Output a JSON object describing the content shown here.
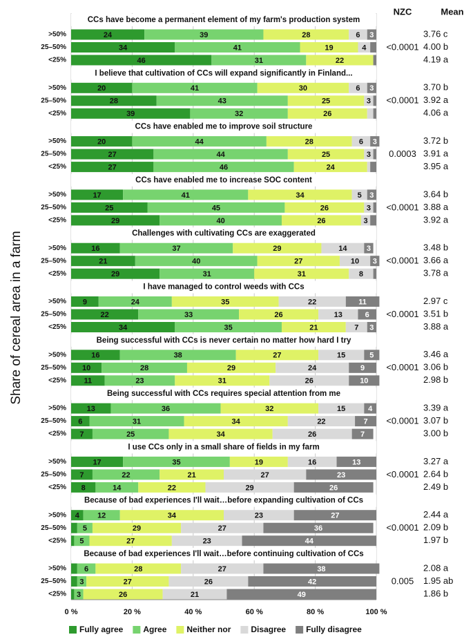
{
  "chart_data": {
    "type": "stacked-barh-panels",
    "ylabel": "Share of cereal area in a farm",
    "nzc_header": "NZC",
    "mean_header": "Mean",
    "categories": [
      ">50%",
      "25–50%",
      "<25%"
    ],
    "series": [
      {
        "name": "Fully agree",
        "color": "#2e9a2e"
      },
      {
        "name": "Agree",
        "color": "#77d36f"
      },
      {
        "name": "Neither nor",
        "color": "#dff266"
      },
      {
        "name": "Disagree",
        "color": "#d9d9d9"
      },
      {
        "name": "Fully disagree",
        "color": "#7f7f7f"
      }
    ],
    "xlim": [
      0,
      100
    ],
    "xticks": [
      {
        "value": 0,
        "label": "0 %"
      },
      {
        "value": 20,
        "label": "20 %"
      },
      {
        "value": 40,
        "label": "40 %"
      },
      {
        "value": 60,
        "label": "60 %"
      },
      {
        "value": 80,
        "label": "80 %"
      },
      {
        "value": 100,
        "label": "100 %"
      }
    ],
    "grid": true,
    "panels": [
      {
        "title": "CCs have become a permanent element of my farm's production system",
        "nzc": "<0.0001",
        "means": [
          "3.76 c",
          "4.00 b",
          "4.19 a"
        ],
        "values": [
          [
            24,
            39,
            28,
            6,
            3
          ],
          [
            34,
            41,
            19,
            4,
            2
          ],
          [
            46,
            31,
            22,
            0,
            1
          ]
        ]
      },
      {
        "title": "I believe that cultivation of CCs will expand significantly in Finland...",
        "nzc": "<0.0001",
        "means": [
          "3.70 b",
          "3.92 a",
          "4.06 a"
        ],
        "values": [
          [
            20,
            41,
            30,
            6,
            3
          ],
          [
            28,
            43,
            25,
            3,
            1
          ],
          [
            39,
            32,
            26,
            2,
            1
          ]
        ]
      },
      {
        "title": "CCs have enabled me to improve soil structure",
        "nzc": "0.0003",
        "means": [
          "3.72 b",
          "3.91 a",
          "3.95 a"
        ],
        "values": [
          [
            20,
            44,
            28,
            6,
            3
          ],
          [
            27,
            44,
            25,
            3,
            1
          ],
          [
            27,
            46,
            24,
            1,
            2
          ]
        ]
      },
      {
        "title": "CCs have enabled me to increase SOC content",
        "nzc": "<0.0001",
        "means": [
          "3.64 b",
          "3.88 a",
          "3.92 a"
        ],
        "values": [
          [
            17,
            41,
            34,
            5,
            3
          ],
          [
            25,
            45,
            26,
            3,
            1
          ],
          [
            29,
            40,
            26,
            3,
            2
          ]
        ]
      },
      {
        "title": "Challenges with cultivating CCs are exaggerated",
        "nzc": "<0.0001",
        "means": [
          "3.48 b",
          "3.66 a",
          "3.78 a"
        ],
        "values": [
          [
            16,
            37,
            29,
            14,
            3
          ],
          [
            21,
            40,
            27,
            10,
            3
          ],
          [
            29,
            31,
            31,
            8,
            1
          ]
        ]
      },
      {
        "title": "I have managed to control weeds with CCs",
        "nzc": "<0.0001",
        "means": [
          "2.97 c",
          "3.51 b",
          "3.88 a"
        ],
        "values": [
          [
            9,
            24,
            35,
            22,
            11
          ],
          [
            22,
            33,
            26,
            13,
            6
          ],
          [
            34,
            35,
            21,
            7,
            3
          ]
        ]
      },
      {
        "title": "Being successful with CCs is never certain no matter how hard I try",
        "nzc": "<0.0001",
        "means": [
          "3.46 a",
          "3.06 b",
          "2.98 b"
        ],
        "values": [
          [
            16,
            38,
            27,
            15,
            5
          ],
          [
            10,
            28,
            29,
            24,
            9
          ],
          [
            11,
            23,
            31,
            26,
            10
          ]
        ]
      },
      {
        "title": "Being successful with CCs requires special attention from me",
        "nzc": "<0.0001",
        "means": [
          "3.39 a",
          "3.07 b",
          "3.00 b"
        ],
        "values": [
          [
            13,
            36,
            32,
            15,
            4
          ],
          [
            6,
            31,
            34,
            22,
            7
          ],
          [
            7,
            25,
            34,
            26,
            7
          ]
        ]
      },
      {
        "title": "I use CCs only in a small share of fields in my farm",
        "nzc": "<0.0001",
        "means": [
          "3.27 a",
          "2.64 b",
          "2.49 b"
        ],
        "values": [
          [
            17,
            35,
            19,
            16,
            13
          ],
          [
            7,
            22,
            21,
            27,
            23
          ],
          [
            8,
            14,
            22,
            29,
            26
          ]
        ]
      },
      {
        "title": "Because of bad experiences I'll wait…before expanding cultivation of CCs",
        "nzc": "<0.0001",
        "means": [
          "2.44 a",
          "2.09 b",
          "1.97 b"
        ],
        "values": [
          [
            4,
            12,
            34,
            23,
            27
          ],
          [
            2,
            5,
            29,
            27,
            36
          ],
          [
            1,
            5,
            27,
            23,
            44
          ]
        ]
      },
      {
        "title": "Because of bad experiences I'll wait…before continuing cultivation of CCs",
        "nzc": "0.005",
        "means": [
          "2.08 a",
          "1.95 ab",
          "1.86 b"
        ],
        "values": [
          [
            2,
            6,
            28,
            27,
            38
          ],
          [
            2,
            3,
            27,
            26,
            42
          ],
          [
            1,
            3,
            26,
            21,
            49
          ]
        ]
      }
    ]
  }
}
